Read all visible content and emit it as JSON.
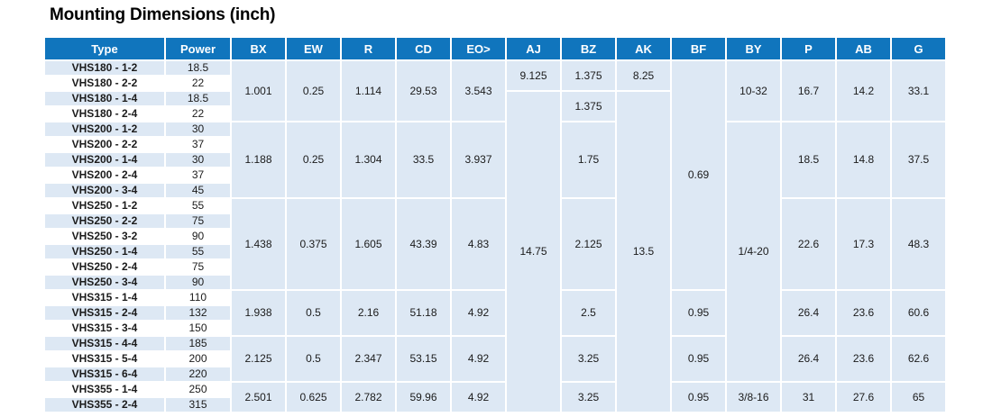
{
  "title": "Mounting Dimensions (inch)",
  "colors": {
    "header_bg": "#1075bd",
    "header_text": "#ffffff",
    "row_alt_bg": "#dde8f4",
    "row_bg": "#ffffff",
    "text": "#1b1b1b"
  },
  "table": {
    "headers": [
      "Type",
      "Power",
      "BX",
      "EW",
      "R",
      "CD",
      "EO>",
      "AJ",
      "BZ",
      "AK",
      "BF",
      "BY",
      "P",
      "AB",
      "G"
    ],
    "column_ids": [
      "BX",
      "EW",
      "R",
      "CD",
      "EO",
      "AJ",
      "BZ",
      "AK",
      "BF",
      "BY",
      "P",
      "AB",
      "G"
    ],
    "rows": [
      {
        "type": "VHS180 - 1-2",
        "power": "18.5"
      },
      {
        "type": "VHS180 - 2-2",
        "power": "22"
      },
      {
        "type": "VHS180 - 1-4",
        "power": "18.5"
      },
      {
        "type": "VHS180 - 2-4",
        "power": "22"
      },
      {
        "type": "VHS200 - 1-2",
        "power": "30"
      },
      {
        "type": "VHS200 - 2-2",
        "power": "37"
      },
      {
        "type": "VHS200 - 1-4",
        "power": "30"
      },
      {
        "type": "VHS200 - 2-4",
        "power": "37"
      },
      {
        "type": "VHS200 - 3-4",
        "power": "45"
      },
      {
        "type": "VHS250 - 1-2",
        "power": "55"
      },
      {
        "type": "VHS250 - 2-2",
        "power": "75"
      },
      {
        "type": "VHS250 - 3-2",
        "power": "90"
      },
      {
        "type": "VHS250 - 1-4",
        "power": "55"
      },
      {
        "type": "VHS250 - 2-4",
        "power": "75"
      },
      {
        "type": "VHS250 - 3-4",
        "power": "90"
      },
      {
        "type": "VHS315 - 1-4",
        "power": "110"
      },
      {
        "type": "VHS315 - 2-4",
        "power": "132"
      },
      {
        "type": "VHS315 - 3-4",
        "power": "150"
      },
      {
        "type": "VHS315 - 4-4",
        "power": "185"
      },
      {
        "type": "VHS315 - 5-4",
        "power": "200"
      },
      {
        "type": "VHS315 - 6-4",
        "power": "220"
      },
      {
        "type": "VHS355 - 1-4",
        "power": "250"
      },
      {
        "type": "VHS355 - 2-4",
        "power": "315"
      }
    ],
    "spans": {
      "BX": [
        {
          "row": 0,
          "span": 4,
          "value": "1.001"
        },
        {
          "row": 4,
          "span": 5,
          "value": "1.188"
        },
        {
          "row": 9,
          "span": 6,
          "value": "1.438"
        },
        {
          "row": 15,
          "span": 3,
          "value": "1.938"
        },
        {
          "row": 18,
          "span": 3,
          "value": "2.125"
        },
        {
          "row": 21,
          "span": 2,
          "value": "2.501"
        }
      ],
      "EW": [
        {
          "row": 0,
          "span": 4,
          "value": "0.25"
        },
        {
          "row": 4,
          "span": 5,
          "value": "0.25"
        },
        {
          "row": 9,
          "span": 6,
          "value": "0.375"
        },
        {
          "row": 15,
          "span": 3,
          "value": "0.5"
        },
        {
          "row": 18,
          "span": 3,
          "value": "0.5"
        },
        {
          "row": 21,
          "span": 2,
          "value": "0.625"
        }
      ],
      "R": [
        {
          "row": 0,
          "span": 4,
          "value": "1.114"
        },
        {
          "row": 4,
          "span": 5,
          "value": "1.304"
        },
        {
          "row": 9,
          "span": 6,
          "value": "1.605"
        },
        {
          "row": 15,
          "span": 3,
          "value": "2.16"
        },
        {
          "row": 18,
          "span": 3,
          "value": "2.347"
        },
        {
          "row": 21,
          "span": 2,
          "value": "2.782"
        }
      ],
      "CD": [
        {
          "row": 0,
          "span": 4,
          "value": "29.53"
        },
        {
          "row": 4,
          "span": 5,
          "value": "33.5"
        },
        {
          "row": 9,
          "span": 6,
          "value": "43.39"
        },
        {
          "row": 15,
          "span": 3,
          "value": "51.18"
        },
        {
          "row": 18,
          "span": 3,
          "value": "53.15"
        },
        {
          "row": 21,
          "span": 2,
          "value": "59.96"
        }
      ],
      "EO": [
        {
          "row": 0,
          "span": 4,
          "value": "3.543"
        },
        {
          "row": 4,
          "span": 5,
          "value": "3.937"
        },
        {
          "row": 9,
          "span": 6,
          "value": "4.83"
        },
        {
          "row": 15,
          "span": 3,
          "value": "4.92"
        },
        {
          "row": 18,
          "span": 3,
          "value": "4.92"
        },
        {
          "row": 21,
          "span": 2,
          "value": "4.92"
        }
      ],
      "AJ": [
        {
          "row": 0,
          "span": 2,
          "value": "9.125"
        },
        {
          "row": 2,
          "span": 21,
          "value": "14.75"
        }
      ],
      "BZ": [
        {
          "row": 0,
          "span": 2,
          "value": "1.375"
        },
        {
          "row": 2,
          "span": 2,
          "value": "1.375"
        },
        {
          "row": 4,
          "span": 5,
          "value": "1.75"
        },
        {
          "row": 9,
          "span": 6,
          "value": "2.125"
        },
        {
          "row": 15,
          "span": 3,
          "value": "2.5"
        },
        {
          "row": 18,
          "span": 3,
          "value": "3.25"
        },
        {
          "row": 21,
          "span": 2,
          "value": "3.25"
        }
      ],
      "AK": [
        {
          "row": 0,
          "span": 2,
          "value": "8.25"
        },
        {
          "row": 2,
          "span": 21,
          "value": "13.5"
        }
      ],
      "BF": [
        {
          "row": 0,
          "span": 15,
          "value": "0.69"
        },
        {
          "row": 15,
          "span": 3,
          "value": "0.95"
        },
        {
          "row": 18,
          "span": 3,
          "value": "0.95"
        },
        {
          "row": 21,
          "span": 2,
          "value": "0.95"
        }
      ],
      "BY": [
        {
          "row": 0,
          "span": 4,
          "value": "10-32"
        },
        {
          "row": 4,
          "span": 17,
          "value": "1/4-20"
        },
        {
          "row": 21,
          "span": 2,
          "value": "3/8-16"
        }
      ],
      "P": [
        {
          "row": 0,
          "span": 4,
          "value": "16.7"
        },
        {
          "row": 4,
          "span": 5,
          "value": "18.5"
        },
        {
          "row": 9,
          "span": 6,
          "value": "22.6"
        },
        {
          "row": 15,
          "span": 3,
          "value": "26.4"
        },
        {
          "row": 18,
          "span": 3,
          "value": "26.4"
        },
        {
          "row": 21,
          "span": 2,
          "value": "31"
        }
      ],
      "AB": [
        {
          "row": 0,
          "span": 4,
          "value": "14.2"
        },
        {
          "row": 4,
          "span": 5,
          "value": "14.8"
        },
        {
          "row": 9,
          "span": 6,
          "value": "17.3"
        },
        {
          "row": 15,
          "span": 3,
          "value": "23.6"
        },
        {
          "row": 18,
          "span": 3,
          "value": "23.6"
        },
        {
          "row": 21,
          "span": 2,
          "value": "27.6"
        }
      ],
      "G": [
        {
          "row": 0,
          "span": 4,
          "value": "33.1"
        },
        {
          "row": 4,
          "span": 5,
          "value": "37.5"
        },
        {
          "row": 9,
          "span": 6,
          "value": "48.3"
        },
        {
          "row": 15,
          "span": 3,
          "value": "60.6"
        },
        {
          "row": 18,
          "span": 3,
          "value": "62.6"
        },
        {
          "row": 21,
          "span": 2,
          "value": "65"
        }
      ]
    }
  }
}
